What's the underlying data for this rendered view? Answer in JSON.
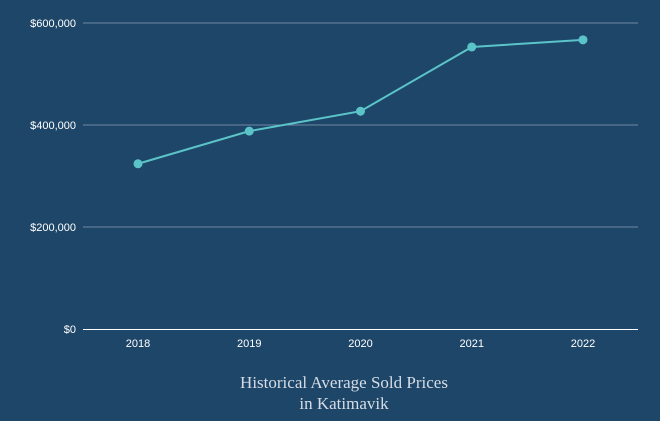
{
  "chart_data": {
    "type": "line",
    "title": "Historical Average Sold Prices in Katimavik",
    "title_lines": [
      "Historical Average Sold Prices",
      "in Katimavik"
    ],
    "xlabel": "",
    "ylabel": "",
    "categories": [
      "2018",
      "2019",
      "2020",
      "2021",
      "2022"
    ],
    "values": [
      324000,
      388000,
      427000,
      553000,
      567000
    ],
    "ylim": [
      0,
      600000
    ],
    "yticks": [
      0,
      200000,
      400000,
      600000
    ],
    "ytick_labels": [
      "$0",
      "$200,000",
      "$400,000",
      "$600,000"
    ],
    "grid": "horizontal",
    "colors": {
      "background": "#1e4669",
      "line": "#5bc4c9",
      "grid": "#6f89a3",
      "axis": "#ffffff"
    }
  }
}
